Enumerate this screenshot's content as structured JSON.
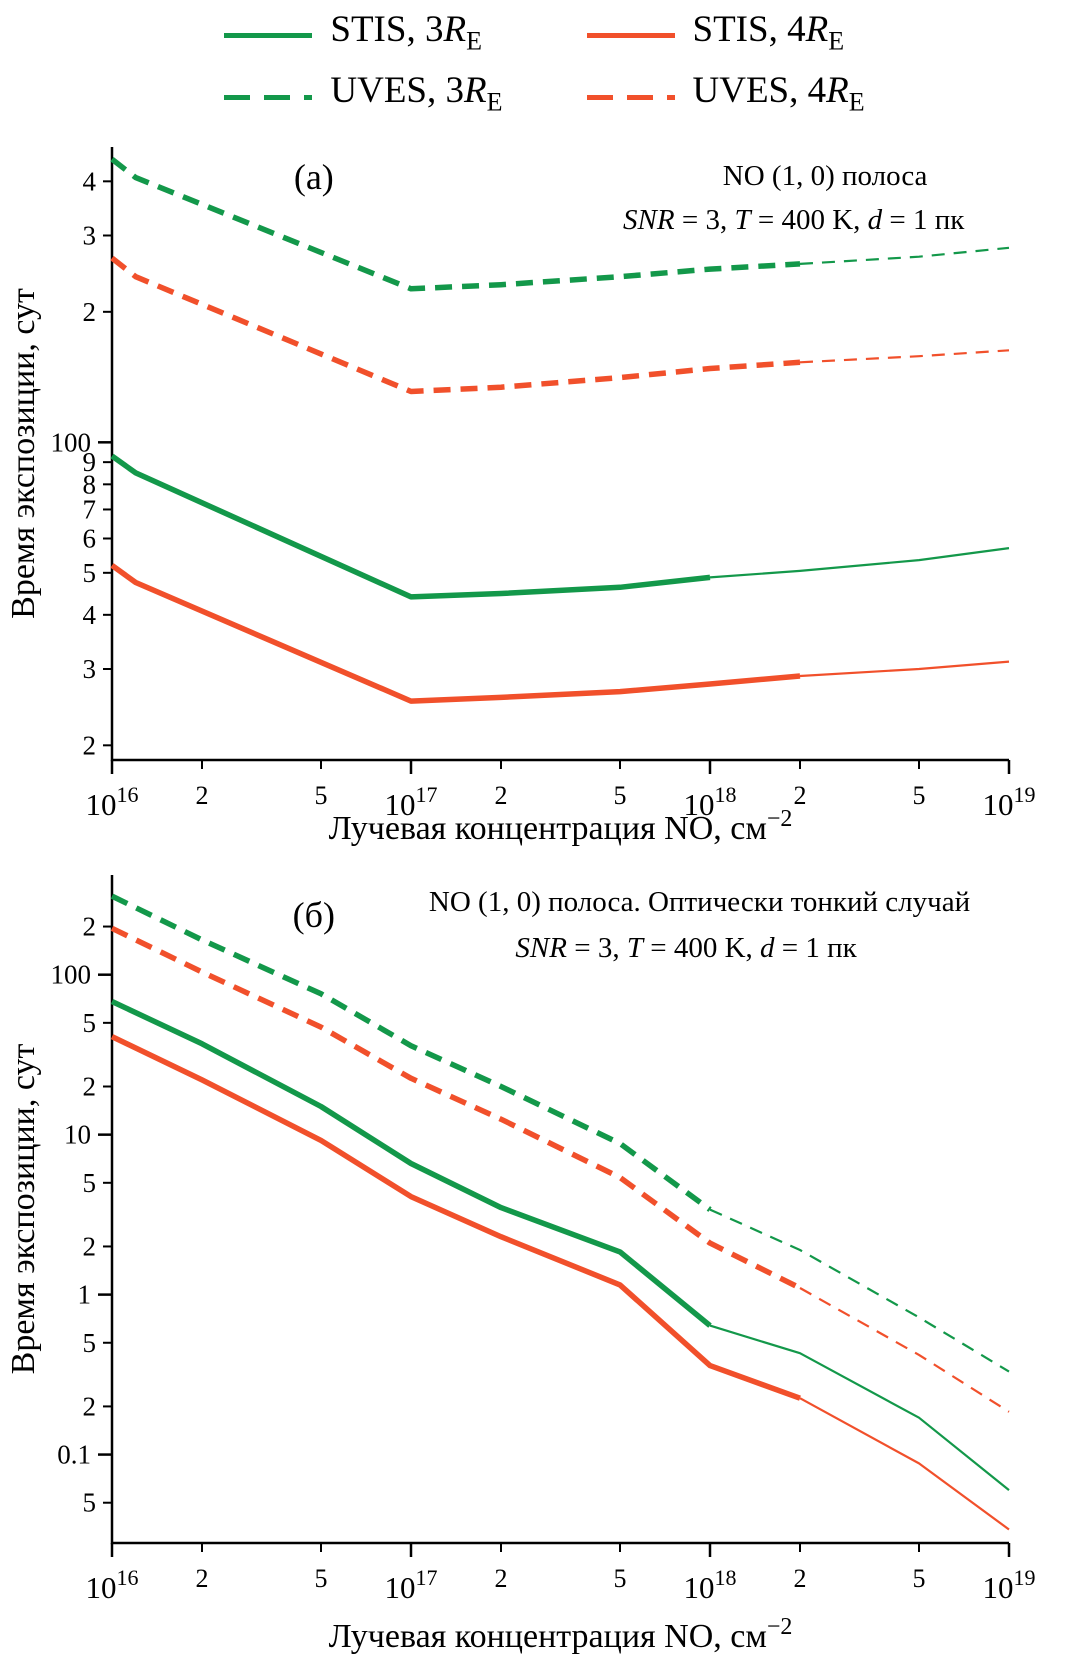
{
  "colors": {
    "green": "#13984a",
    "orange": "#f1502b",
    "axis": "#000000"
  },
  "legend": {
    "items": [
      {
        "prefix": "STIS, 3",
        "symbol": "R",
        "sub": "E",
        "color": "green",
        "dashed": false
      },
      {
        "prefix": "STIS, 4",
        "symbol": "R",
        "sub": "E",
        "color": "orange",
        "dashed": false
      },
      {
        "prefix": "UVES, 3",
        "symbol": "R",
        "sub": "E",
        "color": "green",
        "dashed": true
      },
      {
        "prefix": "UVES, 4",
        "symbol": "R",
        "sub": "E",
        "color": "orange",
        "dashed": true
      }
    ]
  },
  "chart_data": [
    {
      "type": "line",
      "panel_label": "(а)",
      "label_pos": {
        "x_frac": 0.225,
        "dy": 42
      },
      "title_lines": [
        {
          "x_frac": 0.795,
          "dy": 38,
          "segs": [
            {
              "t": "NO (1, 0) полоса"
            }
          ]
        },
        {
          "x_frac": 0.76,
          "dy": 82,
          "segs": [
            {
              "t": "SNR",
              "i": true
            },
            {
              "t": " = 3, "
            },
            {
              "t": "T",
              "i": true
            },
            {
              "t": " = 400 K, "
            },
            {
              "t": "d",
              "i": true
            },
            {
              "t": " = 1 пк"
            }
          ]
        }
      ],
      "xlabel": [
        {
          "t": "Лучевая концентрация NO, см"
        },
        {
          "t": "−2",
          "sup": true
        }
      ],
      "ylabel": "Время экспозиции, сут",
      "xlim": [
        1e+16,
        1e+19
      ],
      "ylim": [
        18.5,
        480
      ],
      "grid": false,
      "x_major_ticks": [
        {
          "v": 1e+16,
          "base": "10",
          "exp": "16"
        },
        {
          "v": 1e+17,
          "base": "10",
          "exp": "17"
        },
        {
          "v": 1e+18,
          "base": "10",
          "exp": "18"
        },
        {
          "v": 1e+19,
          "base": "10",
          "exp": "19"
        }
      ],
      "x_minor_ticks": [
        {
          "v": 2e+16,
          "label": "2"
        },
        {
          "v": 5e+16,
          "label": "5"
        },
        {
          "v": 2e+17,
          "label": "2"
        },
        {
          "v": 5e+17,
          "label": "5"
        },
        {
          "v": 2e+18,
          "label": "2"
        },
        {
          "v": 5e+18,
          "label": "5"
        }
      ],
      "y_ticks": [
        {
          "v": 400,
          "label": "4"
        },
        {
          "v": 300,
          "label": "3"
        },
        {
          "v": 200,
          "label": "2"
        },
        {
          "v": 100,
          "label": "100",
          "major": true
        },
        {
          "v": 90,
          "label": "9"
        },
        {
          "v": 80,
          "label": "8"
        },
        {
          "v": 70,
          "label": "7"
        },
        {
          "v": 60,
          "label": "6"
        },
        {
          "v": 50,
          "label": "5"
        },
        {
          "v": 40,
          "label": "4"
        },
        {
          "v": 30,
          "label": "3"
        },
        {
          "v": 20,
          "label": "2"
        }
      ],
      "series": [
        {
          "name": "UVES, 3RE",
          "color": "green",
          "dashed": true,
          "split_x": 2e+18,
          "points": [
            [
              1e+16,
              450
            ],
            [
              1.2e+16,
              408
            ],
            [
              1e+17,
              226
            ],
            [
              2e+17,
              231
            ],
            [
              5e+17,
              241
            ],
            [
              1e+18,
              251
            ],
            [
              2e+18,
              258
            ],
            [
              5e+18,
              268
            ],
            [
              1e+19,
              281
            ]
          ]
        },
        {
          "name": "UVES, 4RE",
          "color": "orange",
          "dashed": true,
          "split_x": 2e+18,
          "points": [
            [
              1e+16,
              266
            ],
            [
              1.2e+16,
              241
            ],
            [
              1e+17,
              131
            ],
            [
              2e+17,
              134
            ],
            [
              5e+17,
              141
            ],
            [
              1e+18,
              148
            ],
            [
              2e+18,
              153
            ],
            [
              5e+18,
              158
            ],
            [
              1e+19,
              163
            ]
          ]
        },
        {
          "name": "STIS, 3RE",
          "color": "green",
          "dashed": false,
          "split_x": 1e+18,
          "points": [
            [
              1e+16,
              93
            ],
            [
              1.2e+16,
              85
            ],
            [
              1e+17,
              44
            ],
            [
              2e+17,
              44.8
            ],
            [
              5e+17,
              46.3
            ],
            [
              1e+18,
              48.8
            ],
            [
              2e+18,
              50.5
            ],
            [
              5e+18,
              53.5
            ],
            [
              1e+19,
              57
            ]
          ]
        },
        {
          "name": "STIS, 4RE",
          "color": "orange",
          "dashed": false,
          "split_x": 2e+18,
          "points": [
            [
              1e+16,
              52
            ],
            [
              1.2e+16,
              47.5
            ],
            [
              1e+17,
              25.3
            ],
            [
              2e+17,
              25.8
            ],
            [
              5e+17,
              26.6
            ],
            [
              1e+18,
              27.7
            ],
            [
              2e+18,
              28.9
            ],
            [
              5e+18,
              30
            ],
            [
              1e+19,
              31.2
            ]
          ]
        }
      ]
    },
    {
      "type": "line",
      "panel_label": "(б)",
      "label_pos": {
        "x_frac": 0.225,
        "dy": 52
      },
      "title_lines": [
        {
          "x_frac": 0.655,
          "dy": 36,
          "segs": [
            {
              "t": "NO (1, 0) полоса. Оптически тонкий случай"
            }
          ]
        },
        {
          "x_frac": 0.64,
          "dy": 82,
          "segs": [
            {
              "t": "SNR",
              "i": true
            },
            {
              "t": " = 3, "
            },
            {
              "t": "T",
              "i": true
            },
            {
              "t": " = 400 K, "
            },
            {
              "t": "d",
              "i": true
            },
            {
              "t": " = 1 пк"
            }
          ]
        }
      ],
      "xlabel": [
        {
          "t": "Лучевая концентрация NO, см"
        },
        {
          "t": "−2",
          "sup": true
        }
      ],
      "ylabel": "Время экспозиции, сут",
      "xlim": [
        1e+16,
        1e+19
      ],
      "ylim": [
        0.028,
        420
      ],
      "grid": false,
      "x_major_ticks": [
        {
          "v": 1e+16,
          "base": "10",
          "exp": "16"
        },
        {
          "v": 1e+17,
          "base": "10",
          "exp": "17"
        },
        {
          "v": 1e+18,
          "base": "10",
          "exp": "18"
        },
        {
          "v": 1e+19,
          "base": "10",
          "exp": "19"
        }
      ],
      "x_minor_ticks": [
        {
          "v": 2e+16,
          "label": "2"
        },
        {
          "v": 5e+16,
          "label": "5"
        },
        {
          "v": 2e+17,
          "label": "2"
        },
        {
          "v": 5e+17,
          "label": "5"
        },
        {
          "v": 2e+18,
          "label": "2"
        },
        {
          "v": 5e+18,
          "label": "5"
        }
      ],
      "y_ticks": [
        {
          "v": 200,
          "label": "2"
        },
        {
          "v": 100,
          "label": "100",
          "major": true
        },
        {
          "v": 50,
          "label": "5"
        },
        {
          "v": 20,
          "label": "2"
        },
        {
          "v": 10,
          "label": "10",
          "major": true
        },
        {
          "v": 5,
          "label": "5"
        },
        {
          "v": 2,
          "label": "2"
        },
        {
          "v": 1,
          "label": "1",
          "major": true
        },
        {
          "v": 0.5,
          "label": "5"
        },
        {
          "v": 0.2,
          "label": "2"
        },
        {
          "v": 0.1,
          "label": "0.1",
          "major": true
        },
        {
          "v": 0.05,
          "label": "5"
        }
      ],
      "series": [
        {
          "name": "UVES, 3RE",
          "color": "green",
          "dashed": true,
          "split_x": 1e+18,
          "points": [
            [
              1e+16,
              310
            ],
            [
              2e+16,
              165
            ],
            [
              5e+16,
              76
            ],
            [
              1e+17,
              36
            ],
            [
              2e+17,
              20
            ],
            [
              5e+17,
              8.8
            ],
            [
              1e+18,
              3.4
            ],
            [
              2e+18,
              1.9
            ],
            [
              5e+18,
              0.72
            ],
            [
              1e+19,
              0.33
            ]
          ]
        },
        {
          "name": "UVES, 4RE",
          "color": "orange",
          "dashed": true,
          "split_x": 2e+18,
          "points": [
            [
              1e+16,
              195
            ],
            [
              2e+16,
              104
            ],
            [
              5e+16,
              47
            ],
            [
              1e+17,
              22.5
            ],
            [
              2e+17,
              12.5
            ],
            [
              5e+17,
              5.4
            ],
            [
              1e+18,
              2.1
            ],
            [
              2e+18,
              1.1
            ],
            [
              5e+18,
              0.42
            ],
            [
              1e+19,
              0.185
            ]
          ]
        },
        {
          "name": "STIS, 3RE",
          "color": "green",
          "dashed": false,
          "split_x": 1e+18,
          "points": [
            [
              1e+16,
              68
            ],
            [
              2e+16,
              37
            ],
            [
              5e+16,
              15
            ],
            [
              1e+17,
              6.6
            ],
            [
              2e+17,
              3.5
            ],
            [
              5e+17,
              1.85
            ],
            [
              1e+18,
              0.64
            ],
            [
              2e+18,
              0.43
            ],
            [
              5e+18,
              0.17
            ],
            [
              1e+19,
              0.06
            ]
          ]
        },
        {
          "name": "STIS, 4RE",
          "color": "orange",
          "dashed": false,
          "split_x": 2e+18,
          "points": [
            [
              1e+16,
              41
            ],
            [
              2e+16,
              22
            ],
            [
              5e+16,
              9.2
            ],
            [
              1e+17,
              4.1
            ],
            [
              2e+17,
              2.3
            ],
            [
              5e+17,
              1.15
            ],
            [
              1e+18,
              0.36
            ],
            [
              2e+18,
              0.225
            ],
            [
              5e+18,
              0.088
            ],
            [
              1e+19,
              0.034
            ]
          ]
        }
      ]
    }
  ]
}
